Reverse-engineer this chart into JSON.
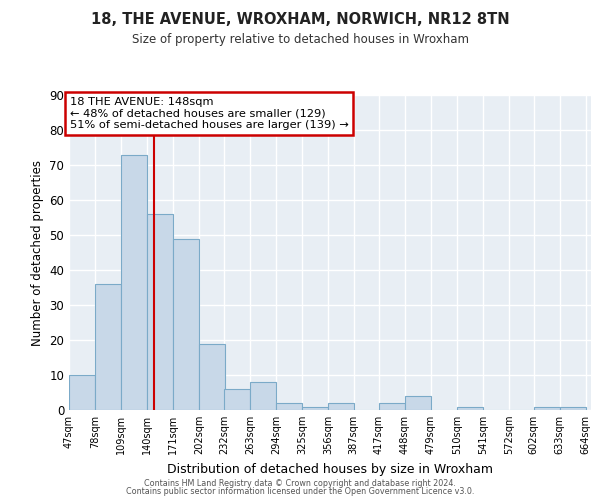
{
  "title1": "18, THE AVENUE, WROXHAM, NORWICH, NR12 8TN",
  "title2": "Size of property relative to detached houses in Wroxham",
  "xlabel": "Distribution of detached houses by size in Wroxham",
  "ylabel": "Number of detached properties",
  "bar_left_edges": [
    47,
    78,
    109,
    140,
    171,
    202,
    232,
    263,
    294,
    325,
    356,
    387,
    417,
    448,
    479,
    510,
    541,
    572,
    602,
    633
  ],
  "bar_heights": [
    10,
    36,
    73,
    56,
    49,
    19,
    6,
    8,
    2,
    1,
    2,
    0,
    2,
    4,
    0,
    1,
    0,
    0,
    1,
    1
  ],
  "bin_width": 31,
  "tick_labels": [
    "47sqm",
    "78sqm",
    "109sqm",
    "140sqm",
    "171sqm",
    "202sqm",
    "232sqm",
    "263sqm",
    "294sqm",
    "325sqm",
    "356sqm",
    "387sqm",
    "417sqm",
    "448sqm",
    "479sqm",
    "510sqm",
    "541sqm",
    "572sqm",
    "602sqm",
    "633sqm",
    "664sqm"
  ],
  "bar_color": "#c8d8e8",
  "bar_edge_color": "#7baac8",
  "ylim": [
    0,
    90
  ],
  "yticks": [
    0,
    10,
    20,
    30,
    40,
    50,
    60,
    70,
    80,
    90
  ],
  "property_line_x": 148,
  "property_line_color": "#cc0000",
  "annotation_box_text": "18 THE AVENUE: 148sqm\n← 48% of detached houses are smaller (129)\n51% of semi-detached houses are larger (139) →",
  "background_color": "#ffffff",
  "plot_bg_color": "#e8eef4",
  "grid_color": "#ffffff",
  "footer1": "Contains HM Land Registry data © Crown copyright and database right 2024.",
  "footer2": "Contains public sector information licensed under the Open Government Licence v3.0."
}
